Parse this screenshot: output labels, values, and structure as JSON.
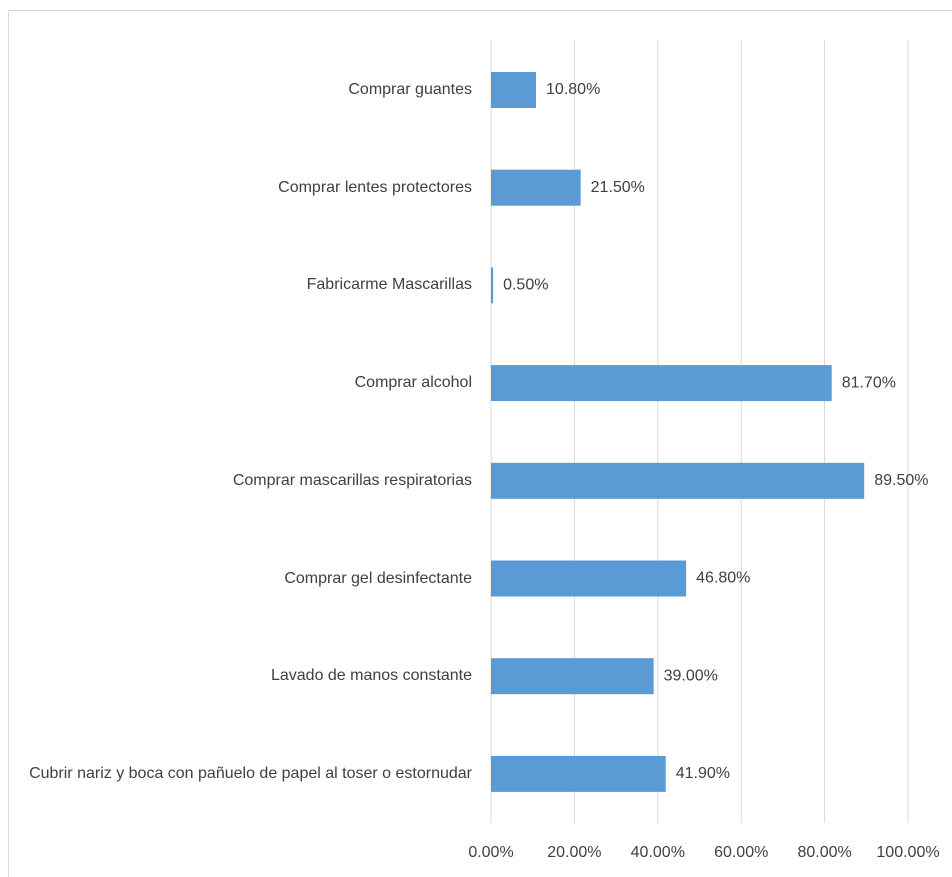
{
  "chart_data": {
    "type": "bar",
    "orientation": "horizontal",
    "categories": [
      "Comprar guantes",
      "Comprar lentes protectores",
      "Fabricarme Mascarillas",
      "Comprar alcohol",
      "Comprar mascarillas respiratorias",
      "Comprar gel desinfectante",
      "Lavado de manos constante",
      "Cubrir nariz y boca con pañuelo de papel al toser o estornudar"
    ],
    "values": [
      10.8,
      21.5,
      0.5,
      81.7,
      89.5,
      46.8,
      39.0,
      41.9
    ],
    "value_labels": [
      "10.80%",
      "21.50%",
      "0.50%",
      "81.70%",
      "89.50%",
      "46.80%",
      "39.00%",
      "41.90%"
    ],
    "color": "#5b9bd5",
    "xlim": [
      0,
      100
    ],
    "xticks": [
      {
        "value": 0,
        "label": "0.00%"
      },
      {
        "value": 20,
        "label": "20.00%"
      },
      {
        "value": 40,
        "label": "40.00%"
      },
      {
        "value": 60,
        "label": "60.00%"
      },
      {
        "value": 80,
        "label": "80.00%"
      },
      {
        "value": 100,
        "label": "100.00%"
      }
    ],
    "grid": true
  }
}
